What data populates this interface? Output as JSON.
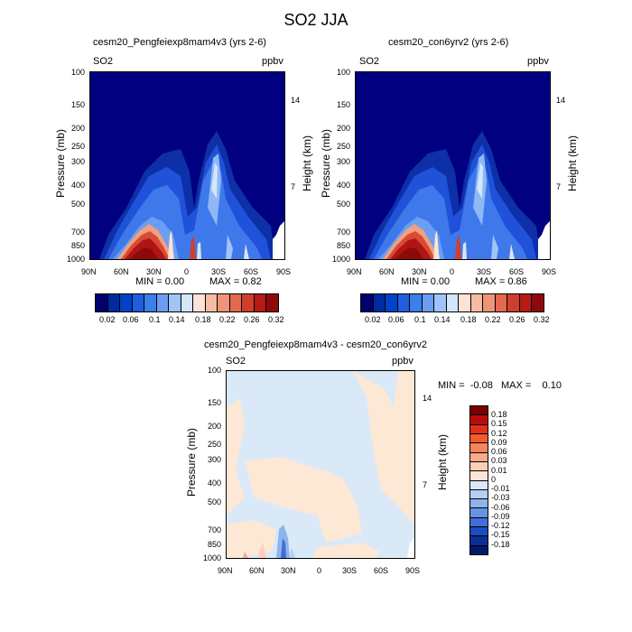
{
  "page_title": "SO2 JJA",
  "chart_data": [
    {
      "type": "heatmap",
      "title": "cesm20_Pengfeiexp8mam4v3 (yrs 2-6)",
      "left_label": "SO2",
      "right_label": "ppbv",
      "ylabel": "Pressure (mb)",
      "ylabel_right": "Height (km)",
      "x_ticks": [
        "90N",
        "60N",
        "30N",
        "0",
        "30S",
        "60S",
        "90S"
      ],
      "y_ticks": [
        "100",
        "150",
        "200",
        "250",
        "300",
        "400",
        "500",
        "700",
        "850",
        "1000"
      ],
      "y_right_ticks": [
        "14",
        "7"
      ],
      "min_label": "MIN =   0.00",
      "max_label": "MAX =   0.82",
      "min": 0.0,
      "max": 0.82,
      "colorbar_labels": [
        "0.02",
        "0.06",
        "0.1",
        "0.14",
        "0.18",
        "0.22",
        "0.26",
        "0.32"
      ]
    },
    {
      "type": "heatmap",
      "title": "cesm20_con6yrv2 (yrs 2-6)",
      "left_label": "SO2",
      "right_label": "ppbv",
      "ylabel": "Pressure (mb)",
      "ylabel_right": "Height (km)",
      "x_ticks": [
        "90N",
        "60N",
        "30N",
        "0",
        "30S",
        "60S",
        "90S"
      ],
      "y_ticks": [
        "100",
        "150",
        "200",
        "250",
        "300",
        "400",
        "500",
        "700",
        "850",
        "1000"
      ],
      "y_right_ticks": [
        "14",
        "7"
      ],
      "min_label": "MIN =   0.00",
      "max_label": "MAX =   0.86",
      "min": 0.0,
      "max": 0.86,
      "colorbar_labels": [
        "0.02",
        "0.06",
        "0.1",
        "0.14",
        "0.18",
        "0.22",
        "0.26",
        "0.32"
      ]
    },
    {
      "type": "heatmap",
      "title": "cesm20_Pengfeiexp8mam4v3 - cesm20_con6yrv2",
      "left_label": "SO2",
      "right_label": "ppbv",
      "ylabel": "Pressure (mb)",
      "ylabel_right": "Height (km)",
      "x_ticks": [
        "90N",
        "60N",
        "30N",
        "0",
        "30S",
        "60S",
        "90S"
      ],
      "y_ticks": [
        "100",
        "150",
        "200",
        "250",
        "300",
        "400",
        "500",
        "700",
        "850",
        "1000"
      ],
      "y_right_ticks": [
        "14",
        "7"
      ],
      "minmax_label": "MIN =  -0.08   MAX =    0.10",
      "min": -0.08,
      "max": 0.1,
      "colorbar_labels": [
        "0.18",
        "0.15",
        "0.12",
        "0.09",
        "0.06",
        "0.03",
        "0.01",
        "0",
        "-0.01",
        "-0.03",
        "-0.06",
        "-0.09",
        "-0.12",
        "-0.15",
        "-0.18"
      ]
    }
  ],
  "colors": {
    "top_scale": [
      "#00006e",
      "#002a9e",
      "#0042c8",
      "#1e5fe0",
      "#3c7eea",
      "#6a9ef2",
      "#a0c3f8",
      "#d6e6fa",
      "#fbe3d6",
      "#f6bca3",
      "#ef9478",
      "#e3694f",
      "#cf3f2d",
      "#b61b16",
      "#8e0a0a"
    ],
    "diff_scale": [
      "#7a0000",
      "#b80c0c",
      "#e2301d",
      "#f25a30",
      "#f7845c",
      "#f9aa8a",
      "#fbcfb6",
      "#fde5d6",
      "#d8e8f8",
      "#b4d0f2",
      "#8db4ec",
      "#6693e3",
      "#3f6fd6",
      "#1d4dbe",
      "#0a2f95",
      "#001a6a"
    ],
    "diff_bg_pos": "#fde8d6",
    "diff_bg_neg": "#d9e9f8"
  }
}
